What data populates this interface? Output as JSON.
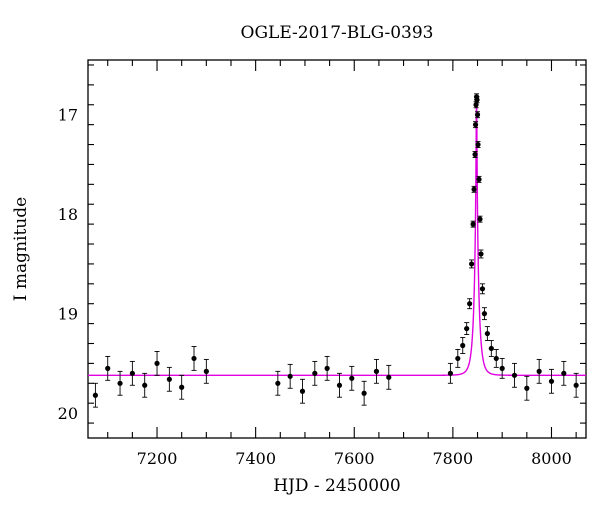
{
  "chart_data": {
    "type": "scatter",
    "title": "OGLE-2017-BLG-0393",
    "xlabel": "HJD - 2450000",
    "ylabel": "I magnitude",
    "xlim": [
      7060,
      8070
    ],
    "ylim": [
      20.25,
      16.45
    ],
    "y_inverted": true,
    "x_ticks": [
      7200,
      7400,
      7600,
      7800,
      8000
    ],
    "y_ticks": [
      17,
      18,
      19,
      20
    ],
    "grid": false,
    "model": {
      "name": "",
      "color": "#e000e0",
      "baseline_mag": 19.62,
      "peak_mag": 16.82,
      "t0": 7848,
      "tE": 9.5
    },
    "point_color": "#000000",
    "series": [
      {
        "name": "",
        "x": [
          7075,
          7100,
          7125,
          7150,
          7175,
          7200,
          7225,
          7250,
          7275,
          7300,
          7445,
          7470,
          7495,
          7520,
          7545,
          7570,
          7595,
          7620,
          7645,
          7670,
          7795,
          7810,
          7820,
          7828,
          7834,
          7838,
          7841,
          7843,
          7845,
          7846,
          7847,
          7848,
          7849,
          7850,
          7851,
          7853,
          7855,
          7857,
          7860,
          7864,
          7870,
          7878,
          7888,
          7900,
          7925,
          7950,
          7975,
          8000,
          8025,
          8050
        ],
        "y": [
          19.82,
          19.55,
          19.7,
          19.6,
          19.72,
          19.5,
          19.66,
          19.74,
          19.45,
          19.58,
          19.7,
          19.63,
          19.78,
          19.6,
          19.55,
          19.72,
          19.65,
          19.8,
          19.58,
          19.64,
          19.6,
          19.45,
          19.32,
          19.15,
          18.9,
          18.5,
          18.1,
          17.75,
          17.4,
          17.1,
          16.9,
          16.82,
          16.85,
          17.0,
          17.3,
          17.65,
          18.05,
          18.4,
          18.75,
          19.0,
          19.2,
          19.35,
          19.45,
          19.55,
          19.62,
          19.75,
          19.58,
          19.68,
          19.6,
          19.72
        ],
        "err": [
          0.12,
          0.12,
          0.12,
          0.12,
          0.12,
          0.12,
          0.12,
          0.12,
          0.12,
          0.12,
          0.12,
          0.12,
          0.12,
          0.12,
          0.12,
          0.12,
          0.12,
          0.12,
          0.12,
          0.12,
          0.1,
          0.09,
          0.08,
          0.06,
          0.05,
          0.04,
          0.03,
          0.03,
          0.03,
          0.03,
          0.03,
          0.03,
          0.03,
          0.03,
          0.03,
          0.03,
          0.03,
          0.04,
          0.05,
          0.06,
          0.07,
          0.08,
          0.09,
          0.1,
          0.12,
          0.12,
          0.12,
          0.12,
          0.12,
          0.12
        ]
      }
    ]
  }
}
